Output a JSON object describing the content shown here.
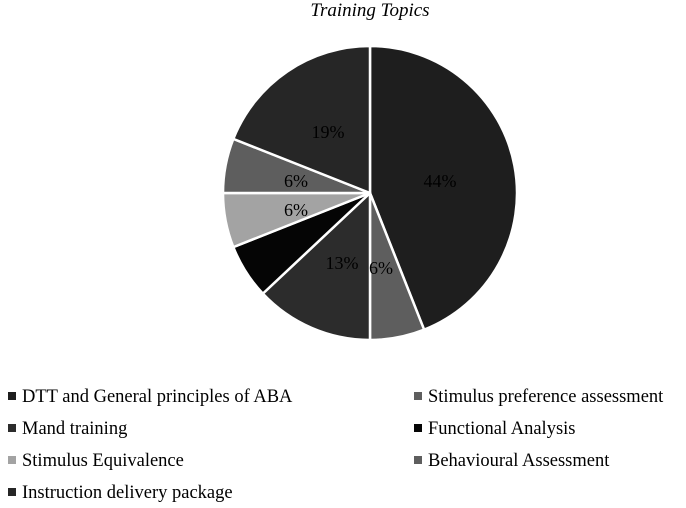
{
  "chart_data": {
    "type": "pie",
    "title": "Training Topics",
    "start_angle_deg": 0,
    "direction": "clockwise",
    "legend_position": "bottom",
    "label_color": "#000000",
    "slices": [
      {
        "name": "DTT and General principles of ABA",
        "value": 44,
        "label": "44%",
        "color": "#1e1e1e"
      },
      {
        "name": "Stimulus preference assessment",
        "value": 6,
        "label": "6%",
        "color": "#5e5e5e"
      },
      {
        "name": "Mand training",
        "value": 13,
        "label": "13%",
        "color": "#2c2c2c"
      },
      {
        "name": "Functional Analysis",
        "value": 6,
        "label": "",
        "color": "#050505"
      },
      {
        "name": "Stimulus Equivalence",
        "value": 6,
        "label": "6%",
        "color": "#a3a3a3"
      },
      {
        "name": "Behavioural Assessment",
        "value": 6,
        "label": "6%",
        "color": "#5e5e5e"
      },
      {
        "name": "Instruction delivery package",
        "value": 19,
        "label": "19%",
        "color": "#262626"
      }
    ]
  }
}
